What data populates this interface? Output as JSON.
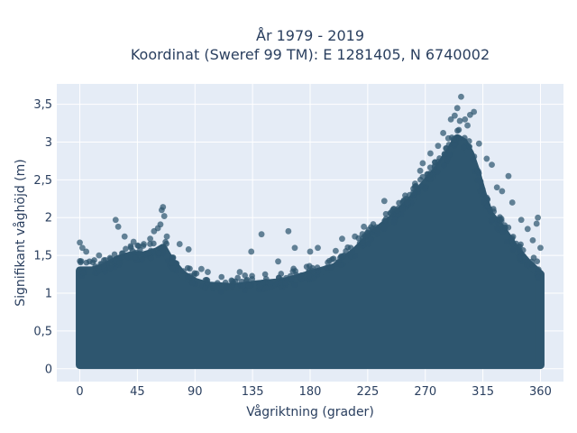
{
  "chart_data": {
    "type": "scatter",
    "title_line1": "År 1979 - 2019",
    "title_line2": "Koordinat (Sweref 99 TM): E 1281405, N 6740002",
    "xlabel": "Vågriktning (grader)",
    "ylabel": "Signifikant våghöjd (m)",
    "xlim": [
      -18,
      378
    ],
    "ylim": [
      -0.17,
      3.77
    ],
    "x_ticks": [
      0,
      45,
      90,
      135,
      180,
      225,
      270,
      315,
      360
    ],
    "x_tick_labels": [
      "0",
      "45",
      "90",
      "135",
      "180",
      "225",
      "270",
      "315",
      "360"
    ],
    "y_ticks": [
      0,
      0.5,
      1,
      1.5,
      2,
      2.5,
      3,
      3.5
    ],
    "y_tick_labels": [
      "0",
      "0,5",
      "1",
      "1,5",
      "2",
      "2,5",
      "3",
      "3,5"
    ],
    "grid": true,
    "colors": {
      "plot_bg": "#e5ecf6",
      "marker": "#2e566f",
      "text": "#2a3f5f"
    },
    "envelope": {
      "x": [
        0,
        10,
        20,
        30,
        40,
        50,
        60,
        65,
        70,
        80,
        90,
        100,
        120,
        140,
        160,
        180,
        200,
        215,
        230,
        245,
        260,
        270,
        280,
        290,
        295,
        300,
        305,
        310,
        315,
        320,
        330,
        340,
        350,
        360
      ],
      "y": [
        1.3,
        1.3,
        1.35,
        1.45,
        1.5,
        1.5,
        1.55,
        1.6,
        1.45,
        1.25,
        1.15,
        1.1,
        1.08,
        1.12,
        1.15,
        1.25,
        1.35,
        1.55,
        1.8,
        2.0,
        2.25,
        2.45,
        2.65,
        2.9,
        3.05,
        3.0,
        2.85,
        2.6,
        2.3,
        2.05,
        1.85,
        1.6,
        1.4,
        1.25
      ]
    },
    "outliers": [
      {
        "x": 0,
        "y": 1.67
      },
      {
        "x": 2,
        "y": 1.6
      },
      {
        "x": 5,
        "y": 1.55
      },
      {
        "x": 15,
        "y": 1.5
      },
      {
        "x": 28,
        "y": 1.97
      },
      {
        "x": 30,
        "y": 1.88
      },
      {
        "x": 35,
        "y": 1.75
      },
      {
        "x": 42,
        "y": 1.68
      },
      {
        "x": 50,
        "y": 1.65
      },
      {
        "x": 55,
        "y": 1.72
      },
      {
        "x": 58,
        "y": 1.82
      },
      {
        "x": 61,
        "y": 1.86
      },
      {
        "x": 63,
        "y": 1.91
      },
      {
        "x": 64,
        "y": 2.1
      },
      {
        "x": 65,
        "y": 2.14
      },
      {
        "x": 66,
        "y": 2.02
      },
      {
        "x": 68,
        "y": 1.75
      },
      {
        "x": 78,
        "y": 1.65
      },
      {
        "x": 85,
        "y": 1.58
      },
      {
        "x": 95,
        "y": 1.32
      },
      {
        "x": 100,
        "y": 1.28
      },
      {
        "x": 125,
        "y": 1.28
      },
      {
        "x": 134,
        "y": 1.55
      },
      {
        "x": 142,
        "y": 1.78
      },
      {
        "x": 155,
        "y": 1.42
      },
      {
        "x": 163,
        "y": 1.82
      },
      {
        "x": 168,
        "y": 1.6
      },
      {
        "x": 180,
        "y": 1.55
      },
      {
        "x": 186,
        "y": 1.6
      },
      {
        "x": 200,
        "y": 1.56
      },
      {
        "x": 205,
        "y": 1.72
      },
      {
        "x": 215,
        "y": 1.75
      },
      {
        "x": 222,
        "y": 1.88
      },
      {
        "x": 230,
        "y": 1.85
      },
      {
        "x": 238,
        "y": 2.22
      },
      {
        "x": 248,
        "y": 2.1
      },
      {
        "x": 256,
        "y": 2.2
      },
      {
        "x": 262,
        "y": 2.45
      },
      {
        "x": 266,
        "y": 2.62
      },
      {
        "x": 268,
        "y": 2.72
      },
      {
        "x": 274,
        "y": 2.85
      },
      {
        "x": 280,
        "y": 2.95
      },
      {
        "x": 284,
        "y": 3.12
      },
      {
        "x": 288,
        "y": 3.05
      },
      {
        "x": 290,
        "y": 3.3
      },
      {
        "x": 293,
        "y": 3.35
      },
      {
        "x": 295,
        "y": 3.45
      },
      {
        "x": 297,
        "y": 3.28
      },
      {
        "x": 298,
        "y": 3.6
      },
      {
        "x": 301,
        "y": 3.3
      },
      {
        "x": 303,
        "y": 3.22
      },
      {
        "x": 305,
        "y": 3.36
      },
      {
        "x": 308,
        "y": 3.4
      },
      {
        "x": 312,
        "y": 2.98
      },
      {
        "x": 318,
        "y": 2.78
      },
      {
        "x": 322,
        "y": 2.7
      },
      {
        "x": 326,
        "y": 2.4
      },
      {
        "x": 330,
        "y": 2.35
      },
      {
        "x": 335,
        "y": 2.55
      },
      {
        "x": 338,
        "y": 2.2
      },
      {
        "x": 345,
        "y": 1.97
      },
      {
        "x": 350,
        "y": 1.85
      },
      {
        "x": 354,
        "y": 1.7
      },
      {
        "x": 357,
        "y": 1.92
      },
      {
        "x": 358,
        "y": 2.0
      },
      {
        "x": 360,
        "y": 1.6
      }
    ]
  }
}
